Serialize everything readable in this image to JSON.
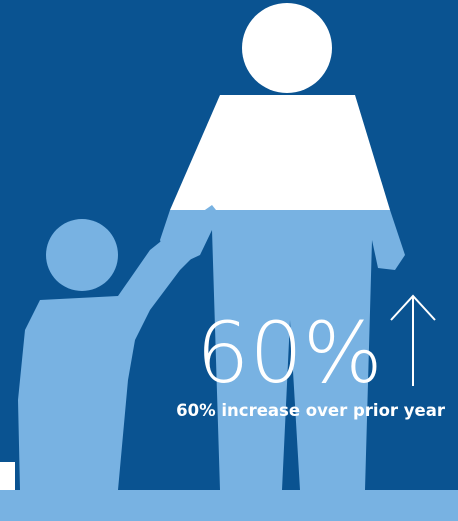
{
  "headline": {
    "value_text": "60%",
    "caption": "60% increase over prior year"
  }
}
